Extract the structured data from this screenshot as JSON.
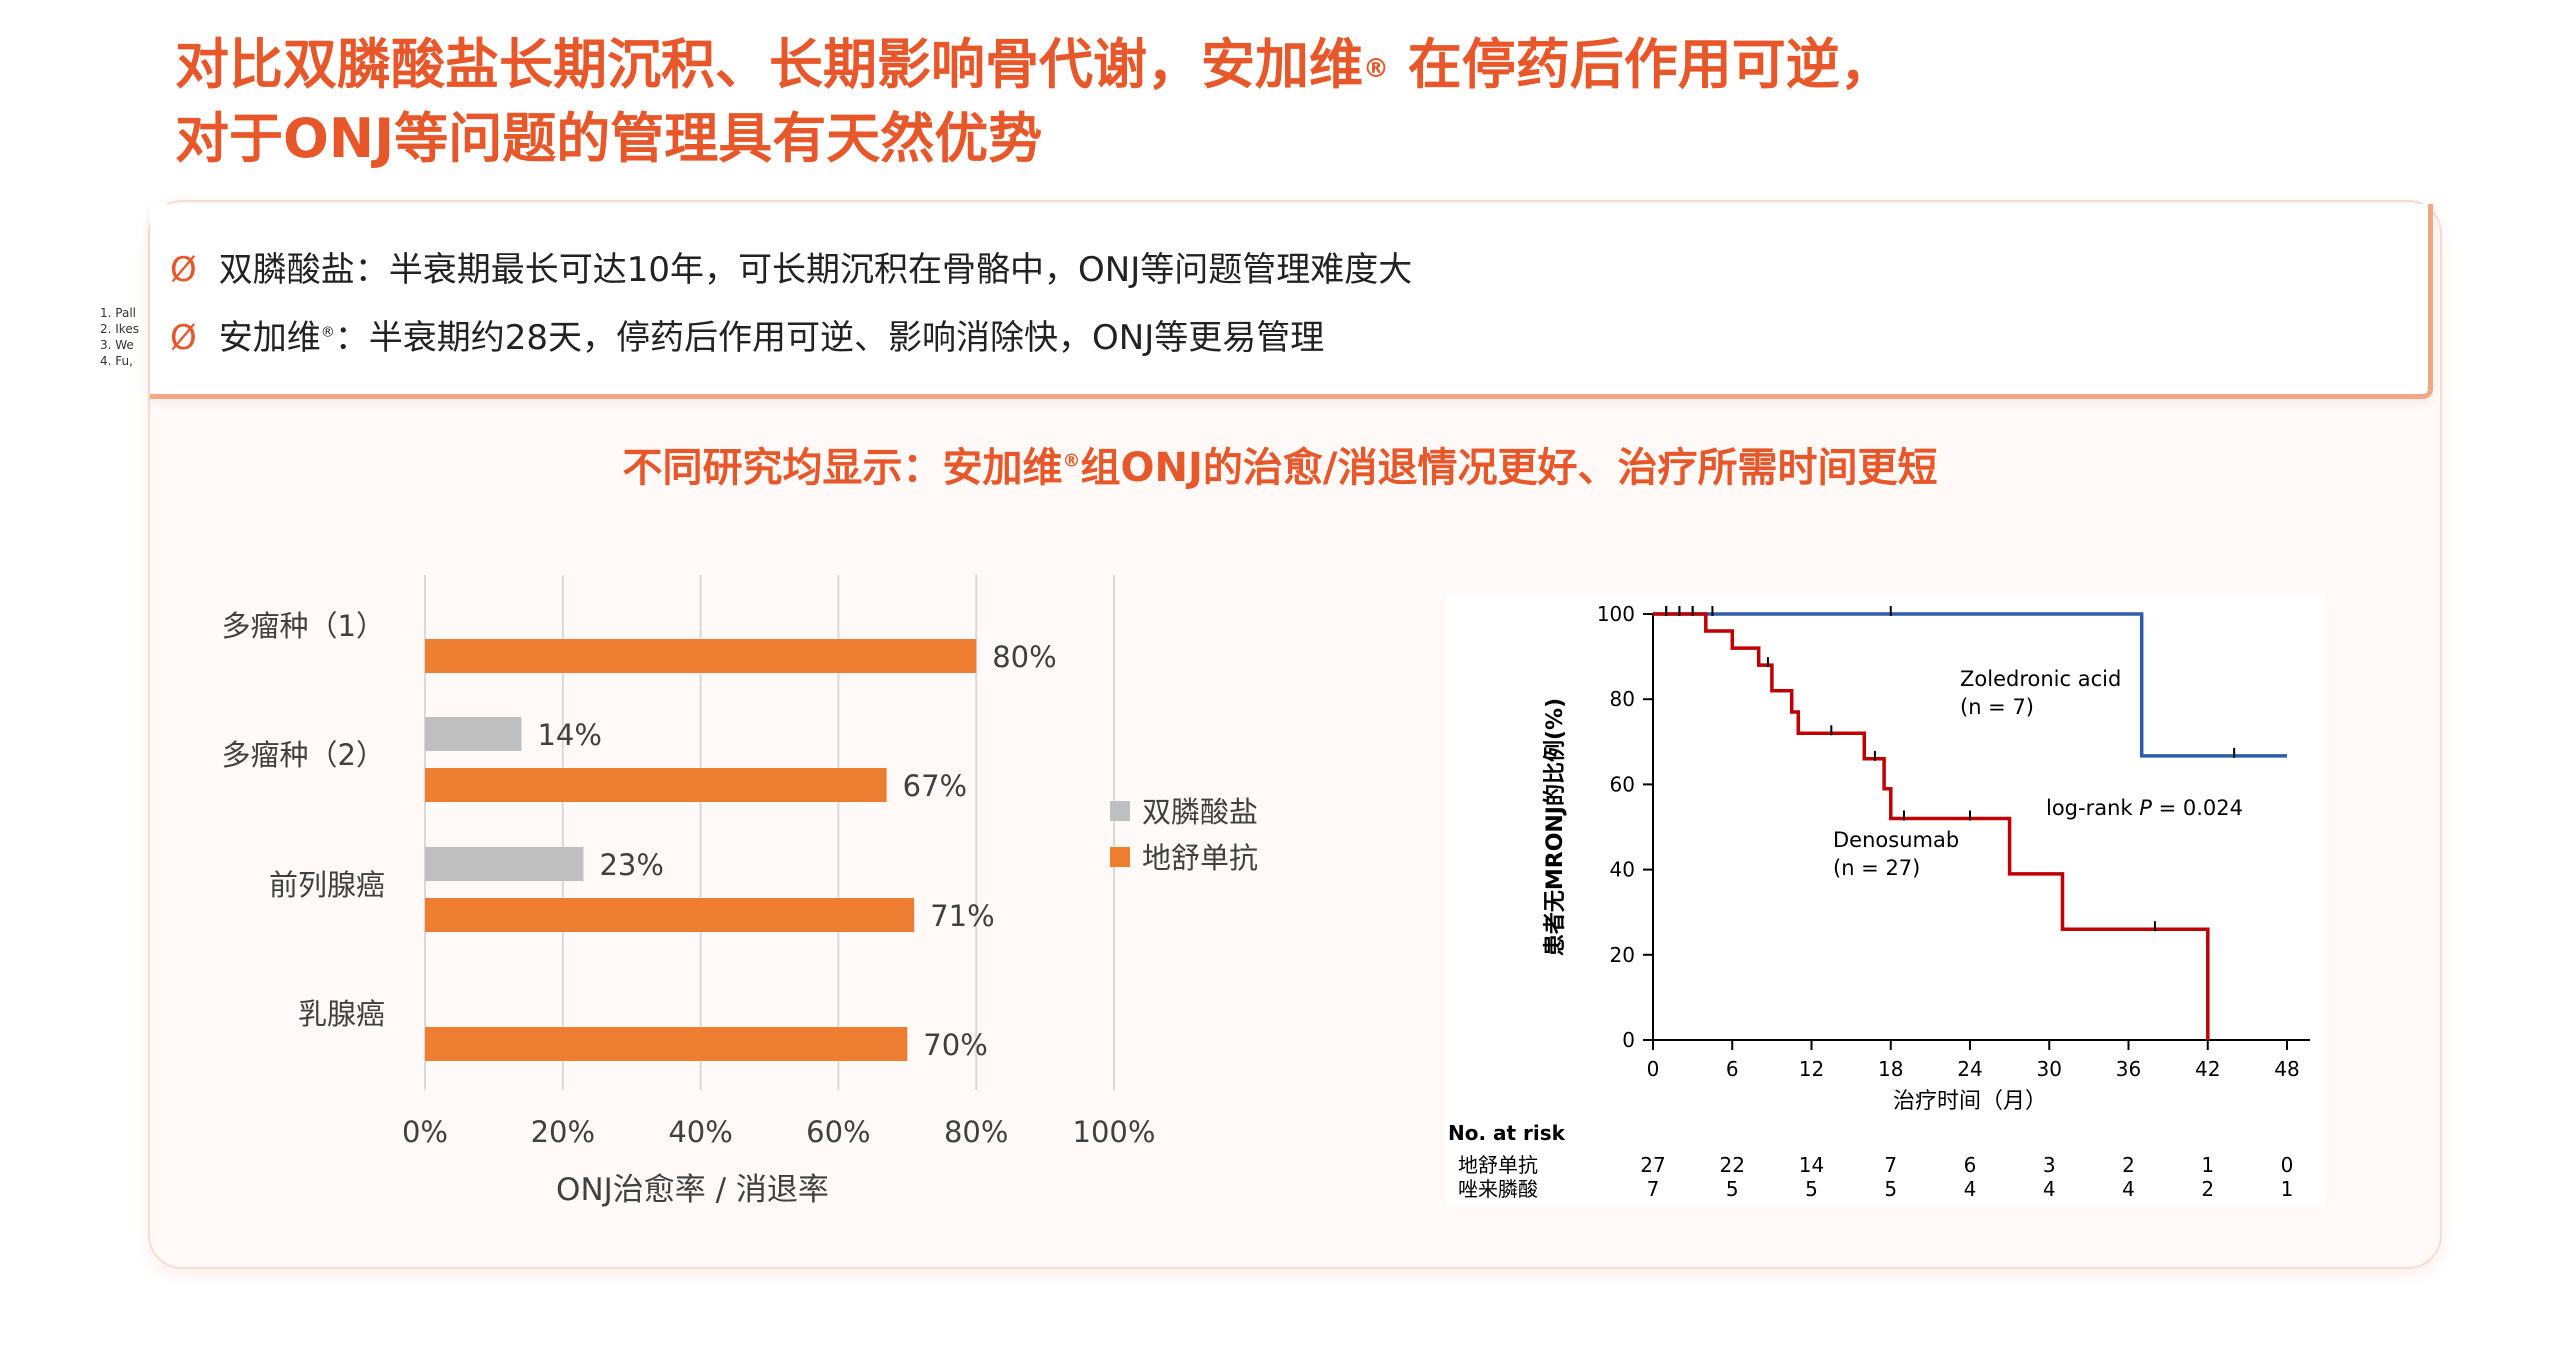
{
  "title": {
    "line1_a": "对比双膦酸盐长期沉积、长期影响骨代谢，安加维",
    "line1_sup": "®",
    "line1_b": " 在停药后作用可逆，",
    "line2": "对于ONJ等问题的管理具有天然优势"
  },
  "bullets": [
    {
      "symbol": "Ø",
      "a": "双膦酸盐：半衰期最长可达10年，可长期沉积在骨骼中，ONJ等问题管理难度大",
      "sup": "",
      "b": ""
    },
    {
      "symbol": "Ø",
      "a": "安加维",
      "sup": "®",
      "b": "：半衰期约28天，停药后作用可逆、影响消除快，ONJ等更易管理"
    }
  ],
  "references": [
    "1. Pall",
    "2. Ikes",
    "3. We",
    "4. Fu,"
  ],
  "subtitle": {
    "a": "不同研究均显示：安加维",
    "sup": "®",
    "b": "组ONJ的治愈/消退情况更好、治疗所需时间更短"
  },
  "colors": {
    "accent": "#e8572a",
    "bisphosphonate": "#bfbfbf",
    "denosumab": "#ed7d31",
    "km_denosumab": "#c00000",
    "km_zoledronic": "#2e5ca8"
  },
  "chart_data": [
    {
      "type": "bar",
      "orientation": "horizontal",
      "categories": [
        "多瘤种（1）",
        "多瘤种（2）",
        "前列腺癌",
        "乳腺癌"
      ],
      "series": [
        {
          "name": "双膦酸盐",
          "values": [
            null,
            14,
            23,
            null
          ]
        },
        {
          "name": "地舒单抗",
          "values": [
            80,
            67,
            71,
            70
          ]
        }
      ],
      "value_labels": {
        "双膦酸盐": [
          "",
          "14%",
          "23%",
          ""
        ],
        "地舒单抗": [
          "80%",
          "67%",
          "71%",
          "70%"
        ]
      },
      "xlabel": "ONJ治愈率 / 消退率",
      "xticks": [
        "0%",
        "20%",
        "40%",
        "60%",
        "80%",
        "100%"
      ],
      "xlim": [
        0,
        100
      ],
      "grid": true,
      "legend": "right"
    },
    {
      "type": "line",
      "subtype": "kaplan-meier",
      "ylabel": "患者无MRONJ的比例(%)",
      "xlabel": "治疗时间（月）",
      "xlim": [
        0,
        48
      ],
      "ylim": [
        0,
        100
      ],
      "xticks": [
        0,
        6,
        12,
        18,
        24,
        30,
        36,
        42,
        48
      ],
      "yticks": [
        0,
        20,
        40,
        60,
        80,
        100
      ],
      "series": [
        {
          "name": "Zoledronic acid",
          "n_label": "(n = 7)",
          "steps": [
            [
              0,
              100
            ],
            [
              37,
              100
            ],
            [
              37,
              66.7
            ],
            [
              48,
              66.7
            ]
          ],
          "censor": [
            [
              1,
              100
            ],
            [
              2,
              100
            ],
            [
              3,
              100
            ],
            [
              4.5,
              100
            ],
            [
              18,
              100
            ],
            [
              44,
              66.7
            ]
          ]
        },
        {
          "name": "Denosumab",
          "n_label": "(n = 27)",
          "steps": [
            [
              0,
              100
            ],
            [
              4,
              100
            ],
            [
              4,
              96
            ],
            [
              6,
              96
            ],
            [
              6,
              92
            ],
            [
              8,
              92
            ],
            [
              8,
              88
            ],
            [
              9,
              88
            ],
            [
              9,
              82
            ],
            [
              10.5,
              82
            ],
            [
              10.5,
              77
            ],
            [
              11,
              77
            ],
            [
              11,
              72
            ],
            [
              16,
              72
            ],
            [
              16,
              66
            ],
            [
              17.5,
              66
            ],
            [
              17.5,
              59
            ],
            [
              18,
              59
            ],
            [
              18,
              52
            ],
            [
              27,
              52
            ],
            [
              27,
              39
            ],
            [
              31,
              39
            ],
            [
              31,
              26
            ],
            [
              42,
              26
            ],
            [
              42,
              0
            ]
          ],
          "censor": [
            [
              1,
              100
            ],
            [
              2,
              100
            ],
            [
              3,
              100
            ],
            [
              8.7,
              88
            ],
            [
              13.5,
              72
            ],
            [
              16.8,
              66
            ],
            [
              19,
              52
            ],
            [
              24,
              52
            ],
            [
              38,
              26
            ]
          ]
        }
      ],
      "annotations": {
        "zol_label": "Zoledronic acid",
        "zol_n": "(n = 7)",
        "den_label": "Denosumab",
        "den_n": "(n = 27)",
        "logrank_a": "log-rank ",
        "logrank_p": "P",
        "logrank_b": " = 0.024"
      },
      "risk_table": {
        "header": "No. at risk",
        "rows": [
          {
            "label": "地舒单抗",
            "values": [
              "27",
              "22",
              "14",
              "7",
              "6",
              "3",
              "2",
              "1",
              "0"
            ]
          },
          {
            "label": "唑来膦酸",
            "values": [
              "7",
              "5",
              "5",
              "5",
              "4",
              "4",
              "4",
              "2",
              "1"
            ]
          }
        ]
      }
    }
  ]
}
